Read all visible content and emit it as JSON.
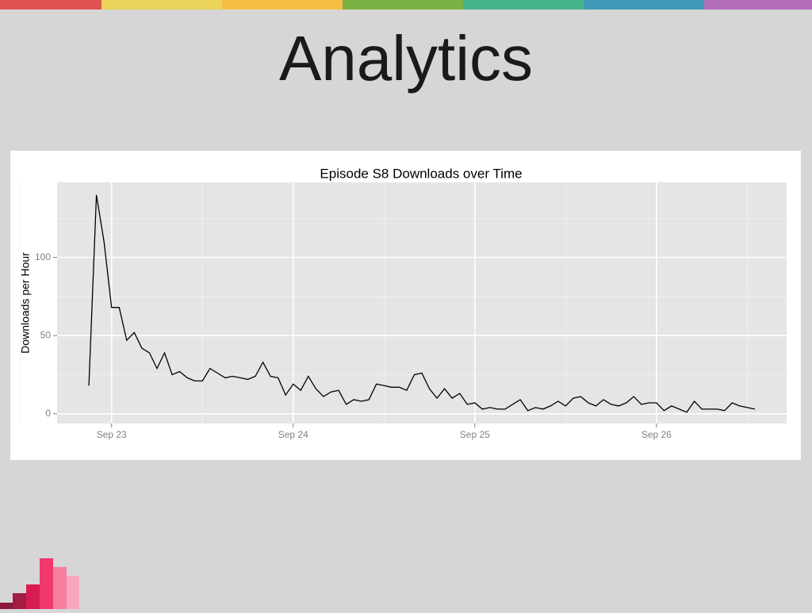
{
  "slide": {
    "title": "Analytics"
  },
  "chart_data": {
    "type": "line",
    "title": "Episode S8 Downloads over Time",
    "ylabel": "Downloads per Hour",
    "color": "#000000",
    "grid": true,
    "x": [
      -3,
      -2,
      -1,
      0,
      1,
      2,
      3,
      4,
      5,
      6,
      7,
      8,
      9,
      10,
      11,
      12,
      13,
      14,
      15,
      16,
      17,
      18,
      19,
      20,
      21,
      22,
      23,
      24,
      25,
      26,
      27,
      28,
      29,
      30,
      31,
      32,
      33,
      34,
      35,
      36,
      37,
      38,
      39,
      40,
      41,
      42,
      43,
      44,
      45,
      46,
      47,
      48,
      49,
      50,
      51,
      52,
      53,
      54,
      55,
      56,
      57,
      58,
      59,
      60,
      61,
      62,
      63,
      64,
      65,
      66,
      67,
      68,
      69,
      70,
      71,
      72,
      73,
      74,
      75,
      76,
      77,
      78,
      79,
      80,
      81,
      82,
      83,
      84,
      85
    ],
    "values": [
      18,
      140,
      110,
      68,
      68,
      47,
      52,
      42,
      39,
      29,
      39,
      25,
      27,
      23,
      21,
      21,
      29,
      26,
      23,
      24,
      23,
      22,
      24,
      33,
      24,
      23,
      12,
      19,
      15,
      24,
      16,
      11,
      14,
      15,
      6,
      9,
      8,
      9,
      19,
      18,
      17,
      17,
      15,
      25,
      26,
      16,
      10,
      16,
      10,
      13,
      6,
      7,
      3,
      4,
      3,
      3,
      6,
      9,
      2,
      4,
      3,
      5,
      8,
      5,
      10,
      11,
      7,
      5,
      9,
      6,
      5,
      7,
      11,
      6,
      7,
      7,
      2,
      5,
      3,
      1,
      8,
      3,
      3,
      3,
      2,
      7,
      5,
      4,
      3
    ],
    "xlim": [
      -7.2,
      89.2
    ],
    "ylim": [
      -6.2,
      148
    ],
    "xticks": [
      {
        "value": 0,
        "label": "Sep 23"
      },
      {
        "value": 24,
        "label": "Sep 24"
      },
      {
        "value": 48,
        "label": "Sep 25"
      },
      {
        "value": 72,
        "label": "Sep 26"
      }
    ],
    "yticks": [
      0,
      50,
      100
    ],
    "minor_xticks": [
      -12,
      12,
      36,
      60,
      84
    ],
    "minor_yticks": [
      25,
      75,
      125
    ]
  }
}
